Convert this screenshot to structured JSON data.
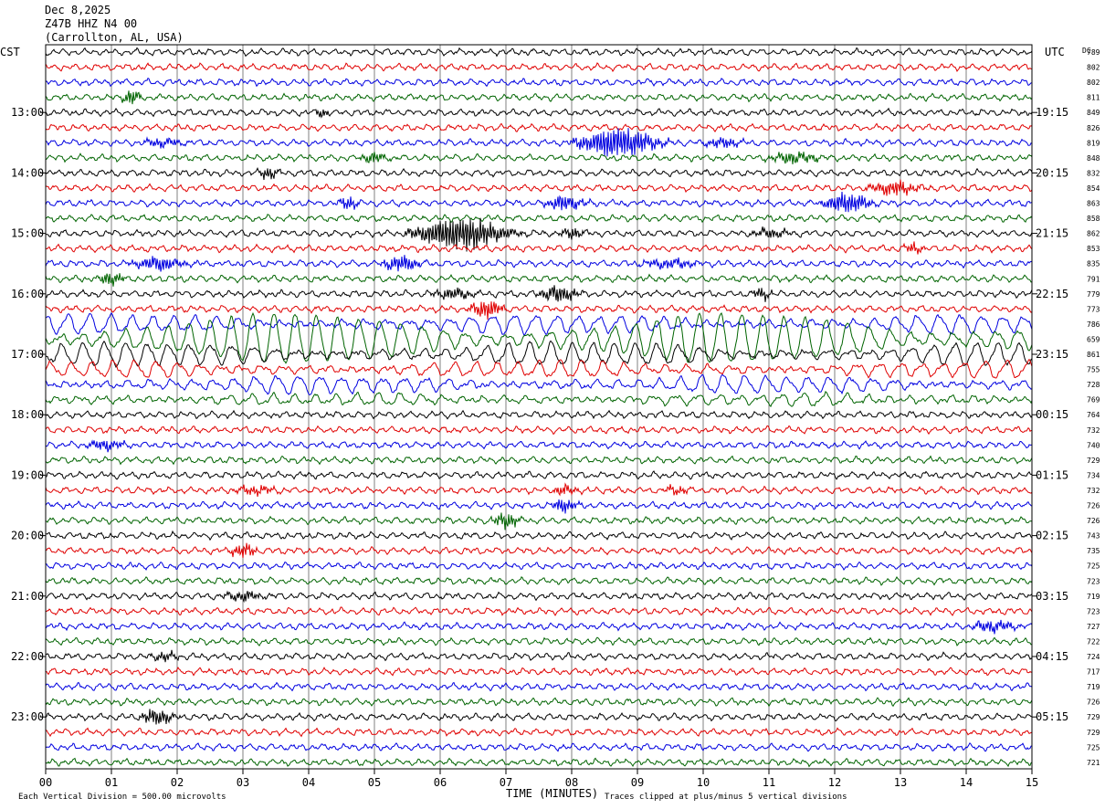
{
  "header": {
    "date": "Dec 8,2025",
    "station": "Z47B HHZ N4 00",
    "location": "(Carrollton, AL, USA)"
  },
  "axes": {
    "left_label": "CST",
    "right_label": "UTC",
    "dc_label": "DC",
    "x_title": "TIME (MINUTES)",
    "footer_scale": "Each Vertical Division =  500.00 microvolts",
    "footer_clip": "Traces clipped at plus/minus 5 vertical divisions"
  },
  "chart_data": {
    "type": "line",
    "title": "Z47B HHZ N4 00",
    "xlabel": "TIME (MINUTES)",
    "x_ticks": [
      "00",
      "01",
      "02",
      "03",
      "04",
      "05",
      "06",
      "07",
      "08",
      "09",
      "10",
      "11",
      "12",
      "13",
      "14",
      "15"
    ],
    "xlim": [
      0,
      15
    ],
    "trace_minutes": 15,
    "trace_count": 48,
    "trace_colors": [
      "#000000",
      "#e00000",
      "#0000e0",
      "#006400"
    ],
    "left_hours": [
      {
        "trace": 4,
        "label": "13:00"
      },
      {
        "trace": 8,
        "label": "14:00"
      },
      {
        "trace": 12,
        "label": "15:00"
      },
      {
        "trace": 16,
        "label": "16:00"
      },
      {
        "trace": 20,
        "label": "17:00"
      },
      {
        "trace": 24,
        "label": "18:00"
      },
      {
        "trace": 28,
        "label": "19:00"
      },
      {
        "trace": 32,
        "label": "20:00"
      },
      {
        "trace": 36,
        "label": "21:00"
      },
      {
        "trace": 40,
        "label": "22:00"
      },
      {
        "trace": 44,
        "label": "23:00"
      }
    ],
    "right_hours": [
      {
        "trace": 4,
        "label": "19:15"
      },
      {
        "trace": 8,
        "label": "20:15"
      },
      {
        "trace": 12,
        "label": "21:15"
      },
      {
        "trace": 16,
        "label": "22:15"
      },
      {
        "trace": 20,
        "label": "23:15"
      },
      {
        "trace": 24,
        "label": "00:15"
      },
      {
        "trace": 28,
        "label": "01:15"
      },
      {
        "trace": 32,
        "label": "02:15"
      },
      {
        "trace": 36,
        "label": "03:15"
      },
      {
        "trace": 40,
        "label": "04:15"
      },
      {
        "trace": 44,
        "label": "05:15"
      }
    ],
    "dc_offsets": [
      "789",
      "802",
      "802",
      "811",
      "849",
      "826",
      "819",
      "848",
      "832",
      "854",
      "863",
      "858",
      "862",
      "853",
      "835",
      "791",
      "779",
      "773",
      "786",
      "659",
      "861",
      "755",
      "728",
      "769",
      "764",
      "732",
      "740",
      "729",
      "734",
      "732",
      "726",
      "726",
      "743",
      "735",
      "725",
      "723",
      "719",
      "723",
      "727",
      "722",
      "724",
      "717",
      "719",
      "726",
      "729",
      "729",
      "725",
      "721"
    ],
    "events": [
      {
        "trace": 3,
        "minute": 1.3,
        "amp": 2.0,
        "dur": 0.15
      },
      {
        "trace": 4,
        "minute": 4.2,
        "amp": 1.5,
        "dur": 0.1
      },
      {
        "trace": 6,
        "minute": 1.8,
        "amp": 1.3,
        "dur": 0.3
      },
      {
        "trace": 6,
        "minute": 8.7,
        "amp": 4.5,
        "dur": 0.6
      },
      {
        "trace": 6,
        "minute": 10.3,
        "amp": 1.4,
        "dur": 0.3
      },
      {
        "trace": 7,
        "minute": 5.0,
        "amp": 1.5,
        "dur": 0.2
      },
      {
        "trace": 7,
        "minute": 11.4,
        "amp": 1.6,
        "dur": 0.4
      },
      {
        "trace": 8,
        "minute": 3.4,
        "amp": 1.8,
        "dur": 0.15
      },
      {
        "trace": 9,
        "minute": 12.9,
        "amp": 2.0,
        "dur": 0.4
      },
      {
        "trace": 10,
        "minute": 4.6,
        "amp": 1.8,
        "dur": 0.15
      },
      {
        "trace": 10,
        "minute": 7.9,
        "amp": 2.2,
        "dur": 0.3
      },
      {
        "trace": 10,
        "minute": 12.2,
        "amp": 3.2,
        "dur": 0.35
      },
      {
        "trace": 12,
        "minute": 6.3,
        "amp": 5.0,
        "dur": 0.7
      },
      {
        "trace": 12,
        "minute": 8.0,
        "amp": 1.5,
        "dur": 0.2
      },
      {
        "trace": 12,
        "minute": 11.0,
        "amp": 1.4,
        "dur": 0.3
      },
      {
        "trace": 13,
        "minute": 13.2,
        "amp": 1.5,
        "dur": 0.15
      },
      {
        "trace": 14,
        "minute": 1.7,
        "amp": 2.0,
        "dur": 0.4
      },
      {
        "trace": 14,
        "minute": 5.4,
        "amp": 2.2,
        "dur": 0.3
      },
      {
        "trace": 14,
        "minute": 9.5,
        "amp": 1.4,
        "dur": 0.4
      },
      {
        "trace": 15,
        "minute": 1.0,
        "amp": 2.0,
        "dur": 0.2
      },
      {
        "trace": 16,
        "minute": 6.2,
        "amp": 1.6,
        "dur": 0.3
      },
      {
        "trace": 16,
        "minute": 7.8,
        "amp": 2.4,
        "dur": 0.3
      },
      {
        "trace": 16,
        "minute": 10.9,
        "amp": 1.6,
        "dur": 0.15
      },
      {
        "trace": 17,
        "minute": 6.7,
        "amp": 2.6,
        "dur": 0.25
      },
      {
        "trace": 26,
        "minute": 0.9,
        "amp": 1.5,
        "dur": 0.3
      },
      {
        "trace": 29,
        "minute": 9.6,
        "amp": 1.3,
        "dur": 0.2
      },
      {
        "trace": 29,
        "minute": 7.9,
        "amp": 1.5,
        "dur": 0.2
      },
      {
        "trace": 29,
        "minute": 3.2,
        "amp": 1.3,
        "dur": 0.3
      },
      {
        "trace": 30,
        "minute": 7.9,
        "amp": 2.0,
        "dur": 0.2
      },
      {
        "trace": 31,
        "minute": 7.0,
        "amp": 2.2,
        "dur": 0.2
      },
      {
        "trace": 33,
        "minute": 3.0,
        "amp": 1.8,
        "dur": 0.2
      },
      {
        "trace": 36,
        "minute": 3.0,
        "amp": 1.5,
        "dur": 0.3
      },
      {
        "trace": 38,
        "minute": 14.4,
        "amp": 1.6,
        "dur": 0.35
      },
      {
        "trace": 40,
        "minute": 1.8,
        "amp": 1.3,
        "dur": 0.2
      },
      {
        "trace": 44,
        "minute": 1.7,
        "amp": 2.4,
        "dur": 0.25
      }
    ],
    "microseism_traces": [
      {
        "trace": 18,
        "amp": 1.4
      },
      {
        "trace": 19,
        "amp": 4.0
      },
      {
        "trace": 20,
        "amp": 1.8
      },
      {
        "trace": 21,
        "amp": 1.2
      },
      {
        "trace": 22,
        "amp": 1.3
      },
      {
        "trace": 23,
        "amp": 0.8
      }
    ]
  }
}
